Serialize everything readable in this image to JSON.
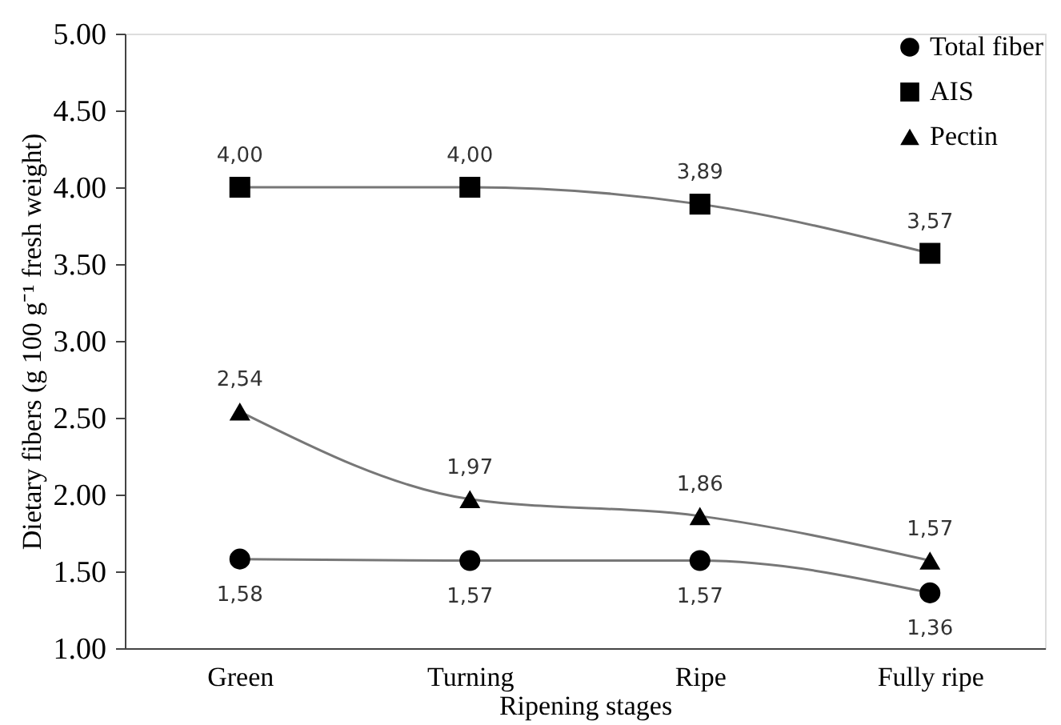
{
  "chart_data": {
    "type": "line",
    "xlabel": "Ripening stages",
    "ylabel": "Dietary fibers (g 100 g⁻¹ fresh weight)",
    "categories": [
      "Green",
      "Turning",
      "Ripe",
      "Fully ripe"
    ],
    "ylim": [
      1,
      5
    ],
    "yticks": [
      {
        "value": 1,
        "label": "1.00"
      },
      {
        "value": 1.5,
        "label": "1.50"
      },
      {
        "value": 2,
        "label": "2.00"
      },
      {
        "value": 2.5,
        "label": "2.50"
      },
      {
        "value": 3,
        "label": "3.00"
      },
      {
        "value": 3.5,
        "label": "3.50"
      },
      {
        "value": 4,
        "label": "4.00"
      },
      {
        "value": 4.5,
        "label": "4.50"
      },
      {
        "value": 5,
        "label": "5.00"
      }
    ],
    "grid": false,
    "legend": "top right",
    "series": [
      {
        "name": "Total fiber",
        "color": "#000000",
        "marker": "circle",
        "values": [
          1.58,
          1.57,
          1.57,
          1.36
        ],
        "value_labels": [
          "1,58",
          "1,57",
          "1,57",
          "1,36"
        ]
      },
      {
        "name": "AIS",
        "color": "#000000",
        "marker": "square",
        "values": [
          4.0,
          4.0,
          3.89,
          3.57
        ],
        "value_labels": [
          "4,00",
          "4,00",
          "3,89",
          "3,57"
        ]
      },
      {
        "name": "Pectin",
        "color": "#000000",
        "marker": "triangle",
        "values": [
          2.54,
          1.97,
          1.86,
          1.57
        ],
        "value_labels": [
          "2,54",
          "1,97",
          "1,86",
          "1,57"
        ]
      }
    ]
  }
}
